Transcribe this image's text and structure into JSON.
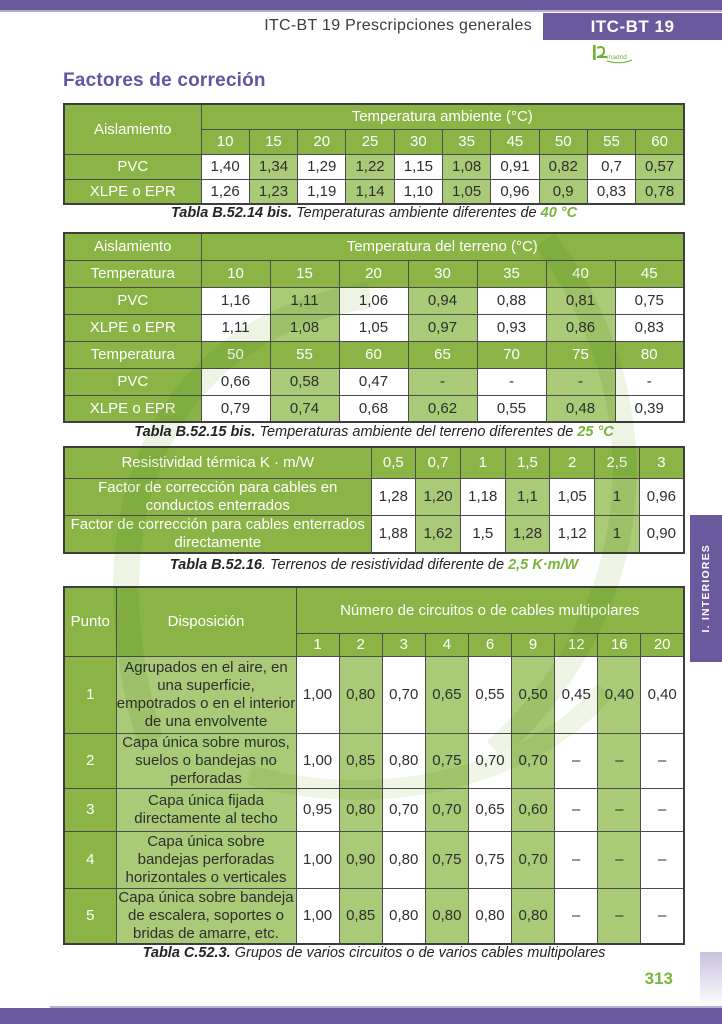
{
  "page": {
    "header_title": "ITC-BT 19 Prescripciones generales",
    "header_tab": "ITC-BT 19",
    "logo_text": "madrid",
    "section_title": "Factores de correción",
    "side_tab": "I. INTERIORES",
    "page_number": "313"
  },
  "colors": {
    "purple": "#6a5a9d",
    "green_header": "#8ab546",
    "green_stripe": "#a9ca76",
    "green_accent": "#79b43c"
  },
  "tables": [
    {
      "type": "simple",
      "corner_label": "Aislamiento",
      "span_label": "Temperatura ambiente (°C)",
      "columns": [
        "10",
        "15",
        "20",
        "25",
        "30",
        "35",
        "45",
        "50",
        "55",
        "60"
      ],
      "rows": [
        {
          "label": "PVC",
          "values": [
            "1,40",
            "1,34",
            "1,29",
            "1,22",
            "1,15",
            "1,08",
            "0,91",
            "0,82",
            "0,7",
            "0,57"
          ]
        },
        {
          "label": "XLPE o EPR",
          "values": [
            "1,26",
            "1,23",
            "1,19",
            "1,14",
            "1,10",
            "1,05",
            "0,96",
            "0,9",
            "0,83",
            "0,78"
          ]
        }
      ],
      "caption": {
        "title": "Tabla B.52.14 bis.",
        "text": " Temperaturas ambiente diferentes de ",
        "highlight": "40 °C"
      }
    },
    {
      "type": "sections",
      "corner_label": "Aislamiento",
      "span_label": "Temperatura del terreno (°C)",
      "sections": [
        {
          "header_label": "Temperatura",
          "columns": [
            "10",
            "15",
            "20",
            "30",
            "35",
            "40",
            "45"
          ],
          "rows": [
            {
              "label": "PVC",
              "values": [
                "1,16",
                "1,11",
                "1,06",
                "0,94",
                "0,88",
                "0,81",
                "0,75"
              ]
            },
            {
              "label": "XLPE o EPR",
              "values": [
                "1,11",
                "1,08",
                "1,05",
                "0,97",
                "0,93",
                "0,86",
                "0,83"
              ]
            }
          ]
        },
        {
          "header_label": "Temperatura",
          "columns": [
            "50",
            "55",
            "60",
            "65",
            "70",
            "75",
            "80"
          ],
          "rows": [
            {
              "label": "PVC",
              "values": [
                "0,66",
                "0,58",
                "0,47",
                "-",
                "-",
                "-",
                "-"
              ]
            },
            {
              "label": "XLPE o EPR",
              "values": [
                "0,79",
                "0,74",
                "0,68",
                "0,62",
                "0,55",
                "0,48",
                "0,39"
              ]
            }
          ]
        }
      ],
      "caption": {
        "title": "Tabla B.52.15 bis.",
        "text": " Temperaturas ambiente del terreno diferentes de ",
        "highlight": "25 °C"
      }
    },
    {
      "type": "leftdesc",
      "corner_label": "Resistividad térmica K · m/W",
      "columns": [
        "0,5",
        "0,7",
        "1",
        "1,5",
        "2",
        "2,5",
        "3"
      ],
      "rows": [
        {
          "label": "Factor de corrección para cables en conductos enterrados",
          "values": [
            "1,28",
            "1,20",
            "1,18",
            "1,1",
            "1,05",
            "1",
            "0,96"
          ]
        },
        {
          "label": "Factor de corrección para cables enterrados directamente",
          "values": [
            "1,88",
            "1,62",
            "1,5",
            "1,28",
            "1,12",
            "1",
            "0,90"
          ]
        }
      ],
      "caption": {
        "title": "Tabla B.52.16",
        "text": ". Terrenos de resistividad diferente de ",
        "highlight": "2,5 K·m/W"
      }
    },
    {
      "type": "punto",
      "punto_label": "Punto",
      "disp_label": "Disposición",
      "span_label": "Número de circuitos o de cables multipolares",
      "columns": [
        "1",
        "2",
        "3",
        "4",
        "6",
        "9",
        "12",
        "16",
        "20"
      ],
      "rows": [
        {
          "num": "1",
          "desc": "Agrupados en el aire, en una superficie, empotrados o en el interior de una envolvente",
          "values": [
            "1,00",
            "0,80",
            "0,70",
            "0,65",
            "0,55",
            "0,50",
            "0,45",
            "0,40",
            "0,40"
          ]
        },
        {
          "num": "2",
          "desc": "Capa única sobre muros, suelos o bandejas no perforadas",
          "values": [
            "1,00",
            "0,85",
            "0,80",
            "0,75",
            "0,70",
            "0,70",
            "–",
            "–",
            "–"
          ]
        },
        {
          "num": "3",
          "desc": "Capa única fijada directamente al techo",
          "values": [
            "0,95",
            "0,80",
            "0,70",
            "0,70",
            "0,65",
            "0,60",
            "–",
            "–",
            "–"
          ]
        },
        {
          "num": "4",
          "desc": "Capa única sobre bandejas perforadas horizontales o verticales",
          "values": [
            "1,00",
            "0,90",
            "0,80",
            "0,75",
            "0,75",
            "0,70",
            "–",
            "–",
            "–"
          ]
        },
        {
          "num": "5",
          "desc": "Capa única sobre bandeja de escalera, soportes o bridas de amarre, etc.",
          "values": [
            "1,00",
            "0,85",
            "0,80",
            "0,80",
            "0,80",
            "0,80",
            "–",
            "–",
            "–"
          ]
        }
      ],
      "caption": {
        "title": "Tabla C.52.3.",
        "text": " Grupos de varios circuitos o de varios cables multipolares",
        "highlight": ""
      }
    }
  ]
}
